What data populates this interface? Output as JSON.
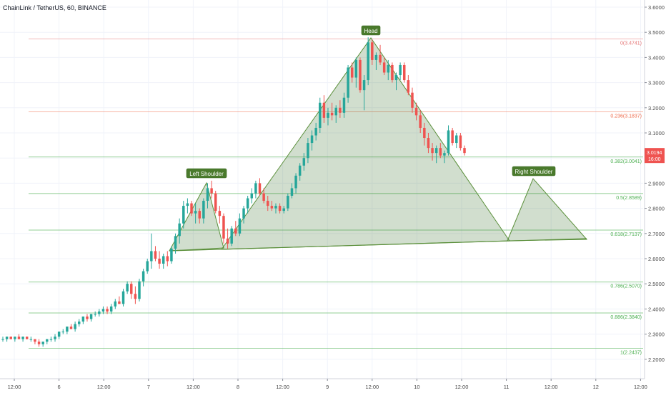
{
  "symbol_title": "ChainLink / TetherUS, 60, BINANCE",
  "price_tag": {
    "price": "3.0194",
    "time": "16:00",
    "color": "#ef5350"
  },
  "colors": {
    "up": "#26a69a",
    "down": "#ef5350",
    "pattern_fill": "#2e6b1f",
    "pattern_stroke": "#5a8f3a",
    "label_bg": "#4a7a2c"
  },
  "chart_data": {
    "type": "candlestick",
    "yaxis": {
      "ticks": [
        "3.6000",
        "3.5000",
        "3.4000",
        "3.3000",
        "3.2000",
        "3.1000",
        "3.0000",
        "2.9000",
        "2.8000",
        "2.7000",
        "2.6000",
        "2.5000",
        "2.4000",
        "2.3000",
        "2.2000"
      ],
      "ylim": [
        2.17,
        3.62
      ]
    },
    "xaxis": {
      "ticks": [
        "12:00",
        "6",
        "12:00",
        "7",
        "12:00",
        "8",
        "12:00",
        "9",
        "12:00",
        "10",
        "12:00",
        "11",
        "12:00",
        "12",
        "12:00"
      ]
    },
    "fib_levels": [
      {
        "ratio": "0",
        "price": 3.4741,
        "label": "0(3.4741)",
        "color": "#e57373"
      },
      {
        "ratio": "0.236",
        "price": 3.1837,
        "label": "0.236(3.1837)",
        "color": "#ef6c4c"
      },
      {
        "ratio": "0.382",
        "price": 3.0041,
        "label": "0.382(3.0041)",
        "color": "#4caf50"
      },
      {
        "ratio": "0.5",
        "price": 2.8589,
        "label": "0.5(2.8589)",
        "color": "#4caf50"
      },
      {
        "ratio": "0.618",
        "price": 2.7137,
        "label": "0.618(2.7137)",
        "color": "#4caf50"
      },
      {
        "ratio": "0.786",
        "price": 2.507,
        "label": "0.786(2.5070)",
        "color": "#4caf50"
      },
      {
        "ratio": "0.886",
        "price": 2.384,
        "label": "0.886(2.3840)",
        "color": "#4caf50"
      },
      {
        "ratio": "1",
        "price": 2.2437,
        "label": "1(2.2437)",
        "color": "#4caf50"
      }
    ],
    "pattern_labels": [
      "Left Shoulder",
      "Head",
      "Right Shoulder"
    ],
    "candles": [
      [
        2.28,
        2.29,
        2.27,
        2.28
      ],
      [
        2.28,
        2.29,
        2.27,
        2.29
      ],
      [
        2.29,
        2.29,
        2.28,
        2.28
      ],
      [
        2.28,
        2.29,
        2.27,
        2.29
      ],
      [
        2.29,
        2.3,
        2.28,
        2.28
      ],
      [
        2.28,
        2.29,
        2.27,
        2.29
      ],
      [
        2.29,
        2.29,
        2.28,
        2.28
      ],
      [
        2.28,
        2.29,
        2.27,
        2.28
      ],
      [
        2.28,
        2.28,
        2.26,
        2.27
      ],
      [
        2.27,
        2.28,
        2.25,
        2.26
      ],
      [
        2.26,
        2.27,
        2.25,
        2.27
      ],
      [
        2.27,
        2.28,
        2.26,
        2.28
      ],
      [
        2.28,
        2.29,
        2.27,
        2.28
      ],
      [
        2.28,
        2.3,
        2.27,
        2.29
      ],
      [
        2.29,
        2.31,
        2.28,
        2.31
      ],
      [
        2.31,
        2.32,
        2.3,
        2.31
      ],
      [
        2.31,
        2.33,
        2.3,
        2.33
      ],
      [
        2.33,
        2.34,
        2.32,
        2.32
      ],
      [
        2.32,
        2.35,
        2.31,
        2.34
      ],
      [
        2.34,
        2.36,
        2.33,
        2.35
      ],
      [
        2.35,
        2.37,
        2.34,
        2.37
      ],
      [
        2.37,
        2.38,
        2.35,
        2.36
      ],
      [
        2.36,
        2.38,
        2.35,
        2.38
      ],
      [
        2.38,
        2.39,
        2.37,
        2.38
      ],
      [
        2.38,
        2.4,
        2.37,
        2.39
      ],
      [
        2.39,
        2.41,
        2.38,
        2.4
      ],
      [
        2.4,
        2.41,
        2.38,
        2.39
      ],
      [
        2.39,
        2.42,
        2.38,
        2.41
      ],
      [
        2.41,
        2.44,
        2.4,
        2.43
      ],
      [
        2.43,
        2.45,
        2.42,
        2.42
      ],
      [
        2.42,
        2.48,
        2.41,
        2.47
      ],
      [
        2.47,
        2.51,
        2.46,
        2.5
      ],
      [
        2.5,
        2.51,
        2.44,
        2.46
      ],
      [
        2.46,
        2.49,
        2.42,
        2.44
      ],
      [
        2.44,
        2.52,
        2.43,
        2.51
      ],
      [
        2.51,
        2.56,
        2.49,
        2.55
      ],
      [
        2.55,
        2.6,
        2.54,
        2.59
      ],
      [
        2.59,
        2.7,
        2.56,
        2.63
      ],
      [
        2.63,
        2.65,
        2.59,
        2.6
      ],
      [
        2.6,
        2.63,
        2.56,
        2.58
      ],
      [
        2.58,
        2.62,
        2.56,
        2.61
      ],
      [
        2.61,
        2.63,
        2.57,
        2.59
      ],
      [
        2.59,
        2.65,
        2.58,
        2.64
      ],
      [
        2.64,
        2.7,
        2.62,
        2.69
      ],
      [
        2.69,
        2.76,
        2.66,
        2.74
      ],
      [
        2.74,
        2.83,
        2.72,
        2.81
      ],
      [
        2.81,
        2.84,
        2.78,
        2.82
      ],
      [
        2.82,
        2.83,
        2.77,
        2.78
      ],
      [
        2.78,
        2.82,
        2.74,
        2.79
      ],
      [
        2.79,
        2.8,
        2.74,
        2.76
      ],
      [
        2.76,
        2.84,
        2.74,
        2.83
      ],
      [
        2.83,
        2.9,
        2.8,
        2.88
      ],
      [
        2.88,
        2.91,
        2.84,
        2.86
      ],
      [
        2.86,
        2.87,
        2.78,
        2.79
      ],
      [
        2.79,
        2.81,
        2.74,
        2.77
      ],
      [
        2.77,
        2.78,
        2.66,
        2.68
      ],
      [
        2.68,
        2.72,
        2.64,
        2.66
      ],
      [
        2.66,
        2.73,
        2.65,
        2.72
      ],
      [
        2.72,
        2.75,
        2.69,
        2.7
      ],
      [
        2.7,
        2.78,
        2.69,
        2.76
      ],
      [
        2.76,
        2.81,
        2.74,
        2.8
      ],
      [
        2.8,
        2.85,
        2.78,
        2.84
      ],
      [
        2.84,
        2.88,
        2.82,
        2.86
      ],
      [
        2.86,
        2.91,
        2.84,
        2.9
      ],
      [
        2.9,
        2.92,
        2.85,
        2.86
      ],
      [
        2.86,
        2.88,
        2.82,
        2.83
      ],
      [
        2.83,
        2.85,
        2.79,
        2.81
      ],
      [
        2.81,
        2.83,
        2.79,
        2.8
      ],
      [
        2.8,
        2.82,
        2.78,
        2.81
      ],
      [
        2.81,
        2.82,
        2.78,
        2.79
      ],
      [
        2.79,
        2.81,
        2.78,
        2.8
      ],
      [
        2.8,
        2.86,
        2.79,
        2.85
      ],
      [
        2.85,
        2.9,
        2.84,
        2.88
      ],
      [
        2.88,
        2.94,
        2.86,
        2.93
      ],
      [
        2.93,
        2.98,
        2.91,
        2.97
      ],
      [
        2.97,
        3.02,
        2.95,
        3.0
      ],
      [
        3.0,
        3.08,
        2.98,
        3.06
      ],
      [
        3.06,
        3.11,
        3.03,
        3.09
      ],
      [
        3.09,
        3.14,
        3.07,
        3.12
      ],
      [
        3.12,
        3.24,
        3.1,
        3.22
      ],
      [
        3.22,
        3.25,
        3.14,
        3.16
      ],
      [
        3.16,
        3.2,
        3.13,
        3.18
      ],
      [
        3.18,
        3.22,
        3.15,
        3.17
      ],
      [
        3.17,
        3.21,
        3.14,
        3.2
      ],
      [
        3.2,
        3.23,
        3.16,
        3.18
      ],
      [
        3.18,
        3.26,
        3.16,
        3.24
      ],
      [
        3.24,
        3.37,
        3.22,
        3.36
      ],
      [
        3.36,
        3.38,
        3.3,
        3.32
      ],
      [
        3.32,
        3.4,
        3.28,
        3.39
      ],
      [
        3.39,
        3.4,
        3.26,
        3.27
      ],
      [
        3.27,
        3.33,
        3.19,
        3.31
      ],
      [
        3.31,
        3.48,
        3.29,
        3.46
      ],
      [
        3.46,
        3.47,
        3.37,
        3.39
      ],
      [
        3.39,
        3.42,
        3.35,
        3.41
      ],
      [
        3.41,
        3.45,
        3.37,
        3.38
      ],
      [
        3.38,
        3.4,
        3.33,
        3.34
      ],
      [
        3.34,
        3.39,
        3.31,
        3.37
      ],
      [
        3.37,
        3.38,
        3.3,
        3.31
      ],
      [
        3.31,
        3.34,
        3.27,
        3.33
      ],
      [
        3.33,
        3.38,
        3.31,
        3.37
      ],
      [
        3.37,
        3.38,
        3.3,
        3.31
      ],
      [
        3.31,
        3.33,
        3.25,
        3.26
      ],
      [
        3.26,
        3.28,
        3.18,
        3.2
      ],
      [
        3.2,
        3.22,
        3.15,
        3.17
      ],
      [
        3.17,
        3.19,
        3.1,
        3.12
      ],
      [
        3.12,
        3.14,
        3.05,
        3.08
      ],
      [
        3.08,
        3.1,
        3.02,
        3.04
      ],
      [
        3.04,
        3.06,
        2.99,
        3.02
      ],
      [
        3.02,
        3.05,
        2.98,
        3.04
      ],
      [
        3.04,
        3.06,
        3.0,
        3.01
      ],
      [
        3.01,
        3.03,
        2.98,
        3.02
      ],
      [
        3.02,
        3.13,
        3.01,
        3.11
      ],
      [
        3.11,
        3.12,
        3.05,
        3.06
      ],
      [
        3.06,
        3.1,
        3.04,
        3.09
      ],
      [
        3.09,
        3.1,
        3.03,
        3.04
      ],
      [
        3.04,
        3.05,
        3.01,
        3.02
      ]
    ]
  }
}
